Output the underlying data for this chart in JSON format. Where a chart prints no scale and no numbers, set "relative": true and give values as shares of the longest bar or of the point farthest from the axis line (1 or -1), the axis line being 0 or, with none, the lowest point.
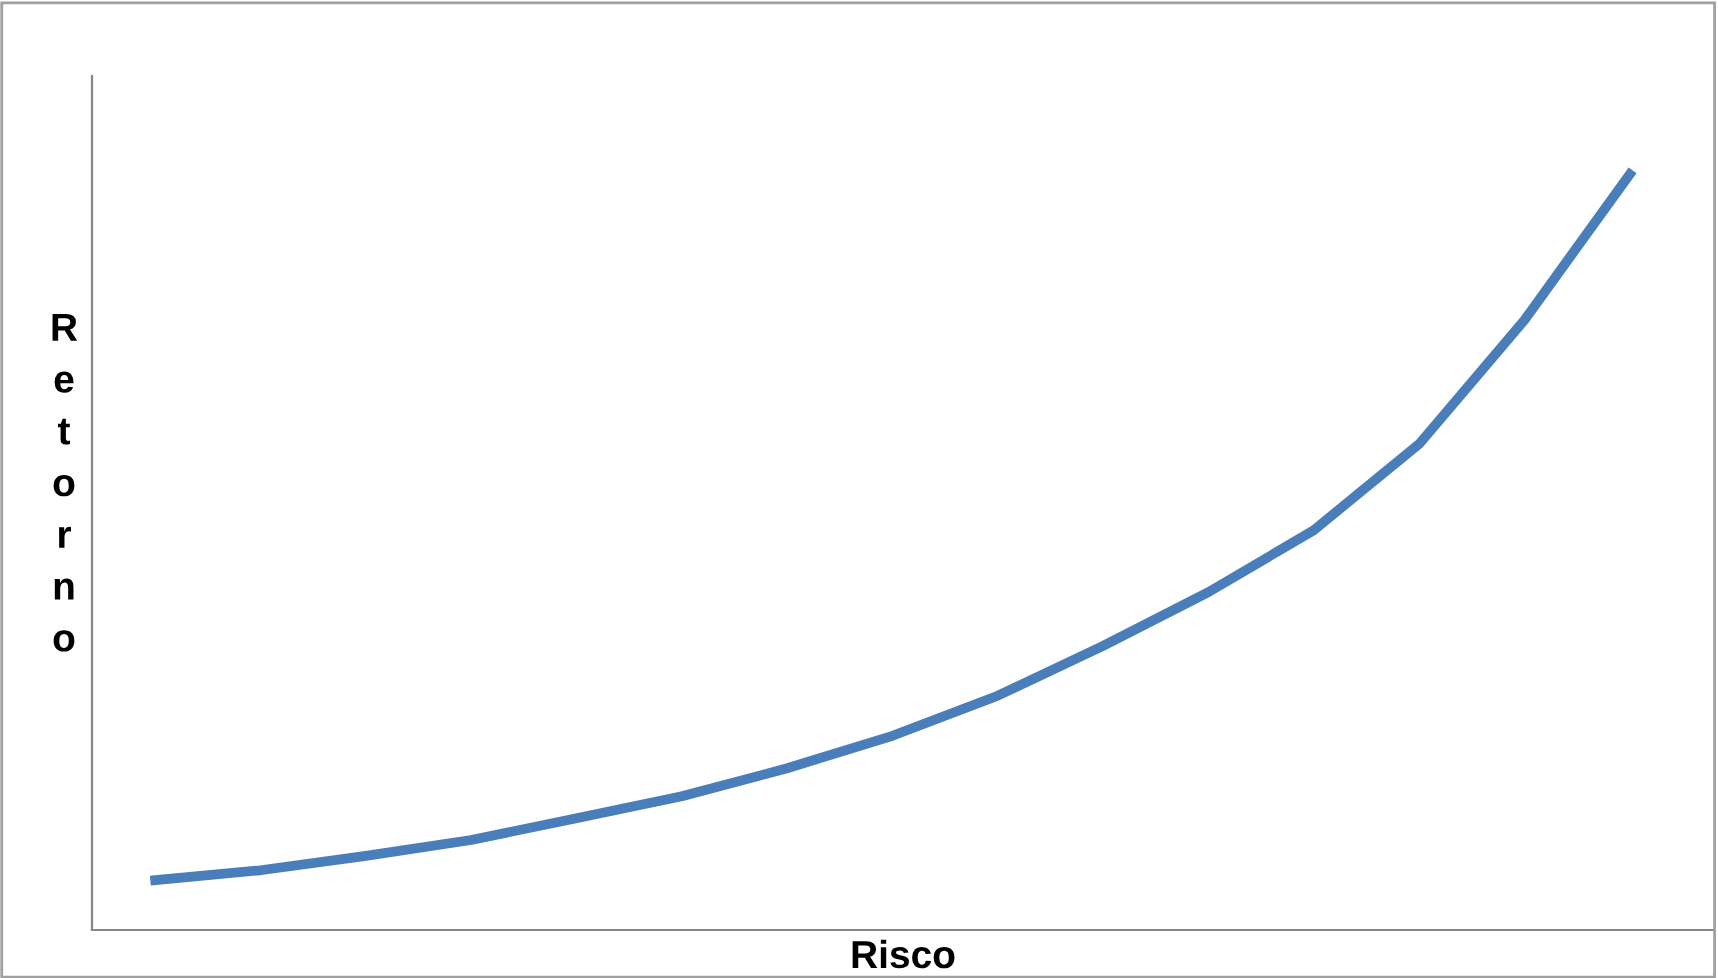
{
  "chart_data": {
    "type": "line",
    "relative": true,
    "xlabel": "Risco",
    "ylabel": "Retorno",
    "categories": [
      null,
      null,
      null,
      null,
      null,
      null,
      null,
      null,
      null,
      null,
      null,
      null,
      null,
      null,
      null
    ],
    "series": [
      {
        "color": "#4a7ebb",
        "values": [
          0.066,
          0.079,
          0.098,
          0.119,
          0.148,
          0.177,
          0.214,
          0.257,
          0.31,
          0.376,
          0.447,
          0.529,
          0.643,
          0.807,
          1
        ]
      }
    ],
    "grid": false,
    "legend": false,
    "marker": "none",
    "line_style": "solid"
  }
}
